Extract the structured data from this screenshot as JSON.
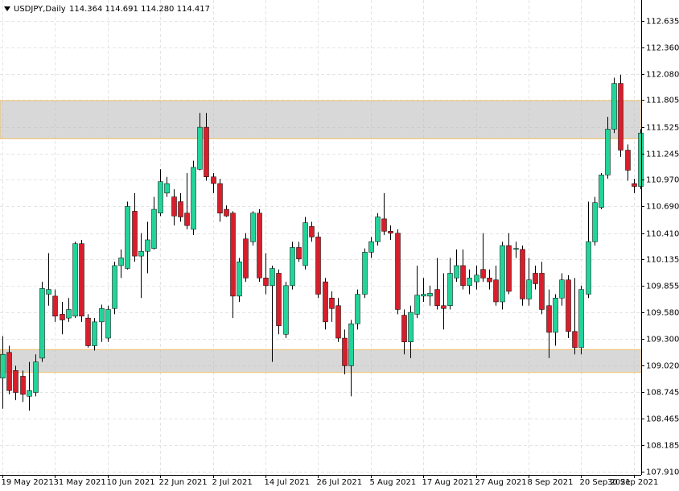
{
  "chart_data": {
    "type": "candlestick",
    "symbol": "USDJPY,Daily",
    "header_values": "114.364 114.691 114.280 114.417",
    "categories": [
      "19 May 2021",
      null,
      null,
      null,
      null,
      null,
      null,
      null,
      "31 May 2021",
      null,
      null,
      null,
      null,
      null,
      null,
      null,
      "10 Jun 2021",
      null,
      null,
      null,
      null,
      null,
      null,
      null,
      "22 Jun 2021",
      null,
      null,
      null,
      null,
      null,
      null,
      null,
      "2 Jul 2021",
      null,
      null,
      null,
      null,
      null,
      null,
      null,
      "14 Jul 2021",
      null,
      null,
      null,
      null,
      null,
      null,
      null,
      "26 Jul 2021",
      null,
      null,
      null,
      null,
      null,
      null,
      null,
      "5 Aug 2021",
      null,
      null,
      null,
      null,
      null,
      null,
      null,
      "17 Aug 2021",
      null,
      null,
      null,
      null,
      null,
      null,
      null,
      "27 Aug 2021",
      null,
      null,
      null,
      null,
      null,
      null,
      null,
      "8 Sep 2021",
      null,
      null,
      null,
      null,
      null,
      null,
      null,
      "20 Sep 2021",
      null,
      null,
      null,
      null,
      null,
      null,
      null,
      "30 Sep 2021",
      null
    ],
    "open": [
      108.89,
      109.16,
      108.97,
      108.91,
      108.7,
      108.74,
      109.1,
      109.77,
      109.75,
      109.56,
      109.52,
      109.54,
      110.3,
      109.52,
      109.23,
      109.48,
      109.31,
      109.62,
      110.07,
      110.04,
      110.64,
      110.17,
      110.22,
      110.25,
      110.62,
      110.83,
      110.79,
      110.74,
      110.62,
      110.45,
      111.08,
      111.52,
      111.0,
      110.93,
      110.66,
      110.62,
      109.75,
      110.35,
      110.32,
      110.62,
      109.94,
      109.86,
      109.99,
      109.35,
      109.86,
      110.26,
      110.07,
      110.48,
      110.37,
      109.9,
      109.73,
      109.65,
      109.31,
      109.02,
      109.46,
      109.77,
      110.21,
      110.32,
      110.56,
      110.43,
      110.41,
      109.55,
      109.27,
      109.56,
      109.75,
      109.75,
      109.82,
      109.65,
      109.65,
      109.94,
      110.07,
      109.86,
      109.9,
      110.03,
      109.94,
      109.92,
      109.69,
      110.28,
      110.24,
      110.24,
      109.72,
      109.99,
      109.99,
      109.65,
      109.37,
      109.73,
      109.92,
      109.38,
      109.21,
      109.77,
      110.32,
      110.68,
      111.02,
      111.5,
      111.98,
      111.28,
      110.93,
      110.9
    ],
    "high": [
      109.33,
      109.23,
      109.02,
      108.97,
      109.06,
      109.14,
      109.9,
      110.2,
      109.82,
      109.69,
      109.73,
      110.32,
      110.34,
      109.56,
      109.52,
      109.66,
      109.65,
      110.11,
      110.24,
      110.74,
      110.83,
      110.41,
      110.53,
      110.79,
      111.08,
      111.0,
      110.87,
      110.83,
      111.04,
      111.17,
      111.67,
      111.67,
      111.04,
      110.98,
      110.7,
      110.64,
      110.15,
      110.41,
      110.64,
      110.66,
      110.2,
      110.07,
      110.03,
      109.9,
      110.32,
      110.32,
      110.58,
      110.53,
      110.42,
      109.94,
      109.8,
      109.73,
      109.4,
      109.5,
      109.82,
      110.25,
      110.37,
      110.62,
      110.83,
      110.49,
      110.45,
      109.61,
      109.65,
      110.07,
      109.94,
      109.86,
      110.15,
      109.99,
      110.15,
      110.24,
      110.24,
      110.03,
      110.07,
      110.41,
      110.03,
      110.07,
      110.32,
      110.41,
      110.32,
      110.28,
      110.15,
      110.07,
      110.11,
      109.82,
      109.77,
      109.99,
      109.97,
      109.94,
      109.86,
      110.74,
      110.79,
      111.04,
      111.63,
      112.04,
      112.07,
      111.34,
      110.98,
      111.5
    ],
    "low": [
      108.57,
      108.72,
      108.66,
      108.64,
      108.55,
      108.7,
      109.06,
      109.65,
      109.48,
      109.35,
      109.48,
      109.52,
      109.48,
      109.21,
      109.18,
      109.27,
      109.27,
      109.56,
      109.94,
      110.03,
      110.11,
      109.73,
      109.99,
      110.24,
      110.59,
      110.79,
      110.49,
      110.53,
      110.45,
      110.39,
      111.07,
      110.96,
      110.83,
      110.53,
      110.58,
      109.52,
      109.69,
      109.9,
      110.28,
      109.9,
      109.77,
      109.06,
      109.35,
      109.31,
      109.82,
      110.11,
      110.03,
      110.32,
      109.73,
      109.4,
      109.48,
      109.27,
      108.93,
      108.7,
      109.4,
      109.73,
      110.15,
      110.28,
      110.39,
      110.34,
      109.56,
      109.14,
      109.1,
      109.52,
      109.69,
      109.65,
      109.61,
      109.4,
      109.61,
      109.9,
      109.82,
      109.77,
      109.82,
      109.9,
      109.82,
      109.65,
      109.61,
      109.77,
      110.15,
      109.65,
      109.65,
      109.82,
      109.56,
      109.1,
      109.23,
      109.65,
      109.31,
      109.14,
      109.14,
      109.73,
      110.28,
      110.66,
      110.98,
      111.46,
      111.21,
      110.96,
      110.83,
      110.87
    ],
    "close": [
      109.14,
      108.76,
      108.74,
      108.72,
      108.76,
      109.06,
      109.83,
      109.82,
      109.54,
      109.5,
      109.61,
      110.3,
      109.54,
      109.23,
      109.48,
      109.62,
      109.61,
      110.07,
      110.15,
      110.69,
      110.17,
      110.22,
      110.34,
      110.66,
      110.95,
      110.93,
      110.59,
      110.58,
      110.49,
      111.1,
      111.52,
      111.0,
      110.93,
      110.62,
      110.59,
      109.75,
      110.11,
      109.94,
      110.62,
      109.94,
      109.86,
      110.04,
      109.44,
      109.86,
      110.26,
      110.14,
      110.52,
      110.37,
      109.77,
      109.48,
      109.62,
      109.31,
      109.02,
      109.46,
      109.77,
      110.21,
      110.32,
      110.58,
      110.43,
      110.41,
      109.61,
      109.27,
      109.58,
      109.76,
      109.77,
      109.78,
      109.65,
      109.62,
      109.99,
      110.07,
      109.86,
      109.94,
      109.97,
      109.94,
      109.9,
      109.69,
      110.28,
      109.8,
      110.25,
      109.72,
      109.92,
      109.88,
      109.61,
      109.37,
      109.73,
      109.92,
      109.38,
      109.21,
      109.82,
      110.32,
      110.73,
      111.02,
      111.5,
      111.98,
      111.28,
      111.07,
      110.9,
      111.46
    ],
    "up_color": "#22d49a",
    "down_color": "#d71f2b",
    "zones": [
      {
        "from": 111.4,
        "to": 111.8
      },
      {
        "from": 108.95,
        "to": 109.19
      }
    ],
    "ylim": [
      107.876,
      112.854
    ],
    "yticks": [
      112.635,
      {
        "value": 112.36,
        "label": "112.360"
      },
      {
        "value": 112.08,
        "label": "112.080"
      },
      111.805,
      111.525,
      111.245,
      {
        "value": 110.97,
        "label": "110.970"
      },
      {
        "value": 110.69,
        "label": "110.690"
      },
      {
        "value": 110.41,
        "label": "110.410"
      },
      110.135,
      109.855,
      {
        "value": 109.58,
        "label": "109.580"
      },
      {
        "value": 109.3,
        "label": "109.300"
      },
      {
        "value": 109.02,
        "label": "109.020"
      },
      108.745,
      108.465,
      108.185,
      {
        "value": 107.91,
        "label": "107.910"
      }
    ],
    "grid": true
  }
}
